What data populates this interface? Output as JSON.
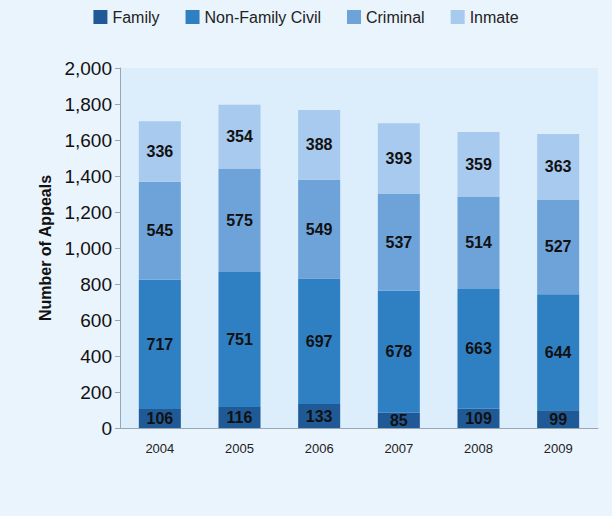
{
  "chart_data": {
    "type": "bar",
    "stacked": true,
    "data_labels": true,
    "legend": "top",
    "grid": false,
    "ylabel": "Number of Appeals",
    "categories": [
      "2004",
      "2005",
      "2006",
      "2007",
      "2008",
      "2009"
    ],
    "ylim": [
      0,
      2000
    ],
    "yticks": [
      0,
      200,
      400,
      600,
      800,
      1000,
      1200,
      1400,
      1600,
      1800,
      2000
    ],
    "series": [
      {
        "name": "Family",
        "color": "#1f5a96",
        "values": [
          106,
          116,
          133,
          85,
          109,
          99
        ]
      },
      {
        "name": "Non-Family Civil",
        "color": "#2f7fc3",
        "values": [
          717,
          751,
          697,
          678,
          663,
          644
        ]
      },
      {
        "name": "Criminal",
        "color": "#6ea3d9",
        "values": [
          545,
          575,
          549,
          537,
          514,
          527
        ]
      },
      {
        "name": "Inmate",
        "color": "#a8caee",
        "values": [
          336,
          354,
          388,
          393,
          359,
          363
        ]
      }
    ]
  }
}
